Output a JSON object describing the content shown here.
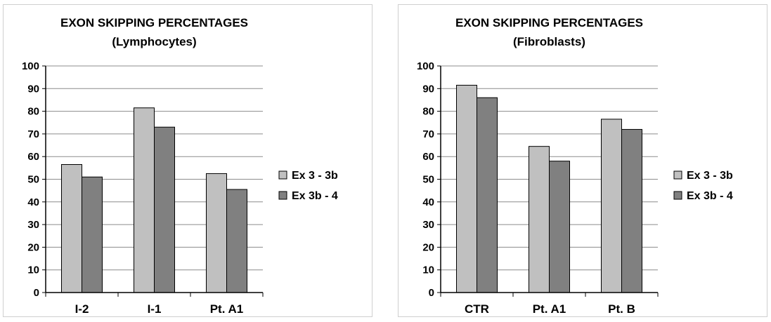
{
  "colors": {
    "series1": "#c0c0c0",
    "series2": "#808080",
    "grid": "#8c8c8c",
    "axis": "#000000"
  },
  "chart_data": [
    {
      "type": "bar",
      "title": "EXON SKIPPING PERCENTAGES",
      "subtitle": "(Lymphocytes)",
      "categories": [
        "I-2",
        "I-1",
        "Pt. A1"
      ],
      "series": [
        {
          "name": "Ex 3 - 3b",
          "values": [
            56.5,
            81.5,
            52.5
          ]
        },
        {
          "name": "Ex 3b - 4",
          "values": [
            51,
            73,
            45.5
          ]
        }
      ],
      "yticks": [
        "0",
        "10",
        "20",
        "30",
        "40",
        "50",
        "60",
        "70",
        "80",
        "90",
        "100"
      ],
      "ylim": [
        0,
        100
      ],
      "grid": true,
      "legend_position": "right"
    },
    {
      "type": "bar",
      "title": "EXON SKIPPING PERCENTAGES",
      "subtitle": "(Fibroblasts)",
      "categories": [
        "CTR",
        "Pt. A1",
        "Pt. B"
      ],
      "series": [
        {
          "name": "Ex 3 - 3b",
          "values": [
            91.5,
            64.5,
            76.5
          ]
        },
        {
          "name": "Ex 3b - 4",
          "values": [
            86,
            58,
            72
          ]
        }
      ],
      "yticks": [
        "0",
        "10",
        "20",
        "30",
        "40",
        "50",
        "60",
        "70",
        "80",
        "90",
        "100"
      ],
      "ylim": [
        0,
        100
      ],
      "grid": true,
      "legend_position": "right"
    }
  ]
}
